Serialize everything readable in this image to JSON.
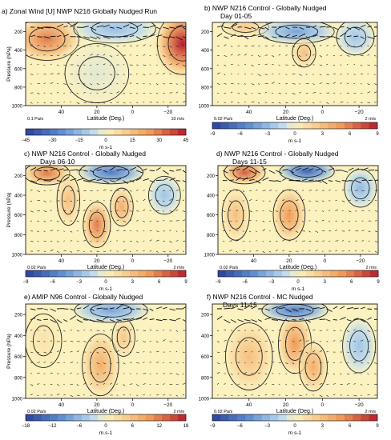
{
  "figure": {
    "colorbar_units_a": "m s-1",
    "colorbar_units_default": "m s-1",
    "colorbar_units_e": "m.s-1",
    "ylabel": "Pressure (hPa)",
    "xlabel": "Latitude (Deg.)",
    "pressure_ticks": [
      "200",
      "400",
      "600",
      "800",
      "1000"
    ],
    "latitude_ticks": [
      "40",
      "20",
      "0",
      "−20"
    ],
    "palette": {
      "blue_dark": "#2b3f9e",
      "blue_mid": "#5d8ed0",
      "blue_light": "#bcdaf0",
      "neutral": "#fbf2bf",
      "orange_light": "#f8d59a",
      "orange_mid": "#ef9a55",
      "red_dark": "#b51d2e"
    }
  },
  "chart_data": [
    {
      "id": "a",
      "type": "heatmap",
      "title": "a) Zonal Wind [U] NWP N216 Globally Nudged Run",
      "subtitle": "",
      "xlabel": "Latitude (Deg.)",
      "ylabel": "Pressure (hPa)",
      "xlim": [
        60,
        -30
      ],
      "ylim": [
        1000,
        100
      ],
      "colorbar_ticks": [
        -45,
        -30,
        -15,
        0,
        15,
        30,
        45
      ],
      "colorbar_labels": [
        "−45",
        "−30",
        "−15",
        "0",
        "15",
        "30",
        "45"
      ],
      "units": "m s-1",
      "vector_ref_left": "0.1 Pa/s",
      "vector_ref_right": "10 m/s",
      "features": [
        {
          "lat": 48,
          "p": 280,
          "value": 30,
          "sx": 14,
          "sp": 180
        },
        {
          "lat": -28,
          "p": 330,
          "value": 45,
          "sx": 11,
          "sp": 260
        },
        {
          "lat": 10,
          "p": 170,
          "value": -14,
          "sx": 18,
          "sp": 120
        },
        {
          "lat": 20,
          "p": 650,
          "value": -3,
          "sx": 14,
          "sp": 250
        }
      ]
    },
    {
      "id": "b",
      "type": "heatmap",
      "title": "b) NWP N216 Control - Globally Nudged",
      "subtitle": "Day 01-05",
      "xlabel": "Latitude (Deg.)",
      "ylabel": "",
      "xlim": [
        60,
        -30
      ],
      "ylim": [
        1000,
        100
      ],
      "colorbar_ticks": [
        -9,
        -6,
        -3,
        0,
        3,
        6,
        9
      ],
      "colorbar_labels": [
        "−9",
        "−6",
        "−3",
        "0",
        "3",
        "6",
        "9"
      ],
      "units": "m s-1",
      "vector_ref_left": "0.02 Pa/s",
      "vector_ref_right": "2 m/s",
      "features": [
        {
          "lat": 42,
          "p": 150,
          "value": 2.5,
          "sx": 10,
          "sp": 80
        },
        {
          "lat": 14,
          "p": 200,
          "value": -4,
          "sx": 16,
          "sp": 100
        },
        {
          "lat": -18,
          "p": 260,
          "value": -2.5,
          "sx": 8,
          "sp": 150
        },
        {
          "lat": 10,
          "p": 430,
          "value": 3,
          "sx": 5,
          "sp": 120
        }
      ]
    },
    {
      "id": "c",
      "type": "heatmap",
      "title": "c) NWP N216 Control - Globally Nudged",
      "subtitle": "Days 06-10",
      "xlabel": "Latitude (Deg.)",
      "ylabel": "Pressure (hPa)",
      "xlim": [
        60,
        -30
      ],
      "ylim": [
        1000,
        100
      ],
      "colorbar_ticks": [
        -9,
        -6,
        -3,
        0,
        3,
        6,
        9
      ],
      "colorbar_labels": [
        "−9",
        "−6",
        "−3",
        "0",
        "3",
        "6",
        "9"
      ],
      "units": "m s-1",
      "vector_ref_left": "0.02 Pa/s",
      "vector_ref_right": "2 m/s",
      "features": [
        {
          "lat": 48,
          "p": 180,
          "value": 6,
          "sx": 10,
          "sp": 90
        },
        {
          "lat": 20,
          "p": 700,
          "value": 6,
          "sx": 6,
          "sp": 180
        },
        {
          "lat": 6,
          "p": 520,
          "value": 4,
          "sx": 5,
          "sp": 150
        },
        {
          "lat": 12,
          "p": 170,
          "value": -6,
          "sx": 14,
          "sp": 90
        },
        {
          "lat": 36,
          "p": 450,
          "value": 3,
          "sx": 5,
          "sp": 200
        },
        {
          "lat": -18,
          "p": 400,
          "value": -2.5,
          "sx": 7,
          "sp": 150
        }
      ]
    },
    {
      "id": "d",
      "type": "heatmap",
      "title": "d) NWP N216 Control - Globally Nudged",
      "subtitle": "Days 11-15",
      "xlabel": "Latitude (Deg.)",
      "ylabel": "",
      "xlim": [
        60,
        -30
      ],
      "ylim": [
        1000,
        100
      ],
      "colorbar_ticks": [
        -9,
        -6,
        -3,
        0,
        3,
        6,
        9
      ],
      "colorbar_labels": [
        "−9",
        "−6",
        "−3",
        "0",
        "3",
        "6",
        "9"
      ],
      "units": "m s-1",
      "vector_ref_left": "0.02 Pa/s",
      "vector_ref_right": "2 m/s",
      "features": [
        {
          "lat": 45,
          "p": 170,
          "value": 7,
          "sx": 9,
          "sp": 90
        },
        {
          "lat": 20,
          "p": 600,
          "value": 5,
          "sx": 7,
          "sp": 200
        },
        {
          "lat": 10,
          "p": 160,
          "value": -7,
          "sx": 12,
          "sp": 80
        },
        {
          "lat": 50,
          "p": 600,
          "value": 3,
          "sx": 6,
          "sp": 200
        },
        {
          "lat": -20,
          "p": 330,
          "value": -3,
          "sx": 7,
          "sp": 150
        }
      ]
    },
    {
      "id": "e",
      "type": "heatmap",
      "title": "e) AMIP N96 Control - Globally Nudged",
      "subtitle": "",
      "xlabel": "Latitude (Deg.)",
      "ylabel": "Pressure (hPa)",
      "xlim": [
        60,
        -30
      ],
      "ylim": [
        1000,
        100
      ],
      "colorbar_ticks": [
        -18,
        -12,
        -6,
        0,
        6,
        12,
        18
      ],
      "colorbar_labels": [
        "−18",
        "−12",
        "−6",
        "0",
        "6",
        "12",
        "18"
      ],
      "units": "m.s-1",
      "vector_ref_left": "0.02 Pa/s",
      "vector_ref_right": "2 m/s",
      "features": [
        {
          "lat": 18,
          "p": 680,
          "value": 8,
          "sx": 8,
          "sp": 230
        },
        {
          "lat": 5,
          "p": 420,
          "value": 5,
          "sx": 5,
          "sp": 140
        },
        {
          "lat": 12,
          "p": 160,
          "value": -8,
          "sx": 16,
          "sp": 90
        },
        {
          "lat": 50,
          "p": 450,
          "value": 2,
          "sx": 8,
          "sp": 200
        }
      ]
    },
    {
      "id": "f",
      "type": "heatmap",
      "title": "f) NWP N216 Control - MC Nudged",
      "subtitle": "Days 11-15",
      "xlabel": "Latitude (Deg.)",
      "ylabel": "",
      "xlim": [
        60,
        -30
      ],
      "ylim": [
        1000,
        100
      ],
      "colorbar_ticks": [
        -9,
        -6,
        -3,
        0,
        3,
        6,
        9
      ],
      "colorbar_labels": [
        "−9",
        "−6",
        "−3",
        "0",
        "3",
        "6",
        "9"
      ],
      "units": "m s-1",
      "vector_ref_left": "0.02 Pa/s",
      "vector_ref_right": "2 m/s",
      "features": [
        {
          "lat": 40,
          "p": 600,
          "value": 3,
          "sx": 10,
          "sp": 250
        },
        {
          "lat": 15,
          "p": 480,
          "value": 5,
          "sx": 7,
          "sp": 220
        },
        {
          "lat": 5,
          "p": 700,
          "value": 4,
          "sx": 6,
          "sp": 180
        },
        {
          "lat": 15,
          "p": 160,
          "value": -6,
          "sx": 14,
          "sp": 80
        },
        {
          "lat": -20,
          "p": 500,
          "value": -2.5,
          "sx": 7,
          "sp": 200
        }
      ]
    }
  ]
}
